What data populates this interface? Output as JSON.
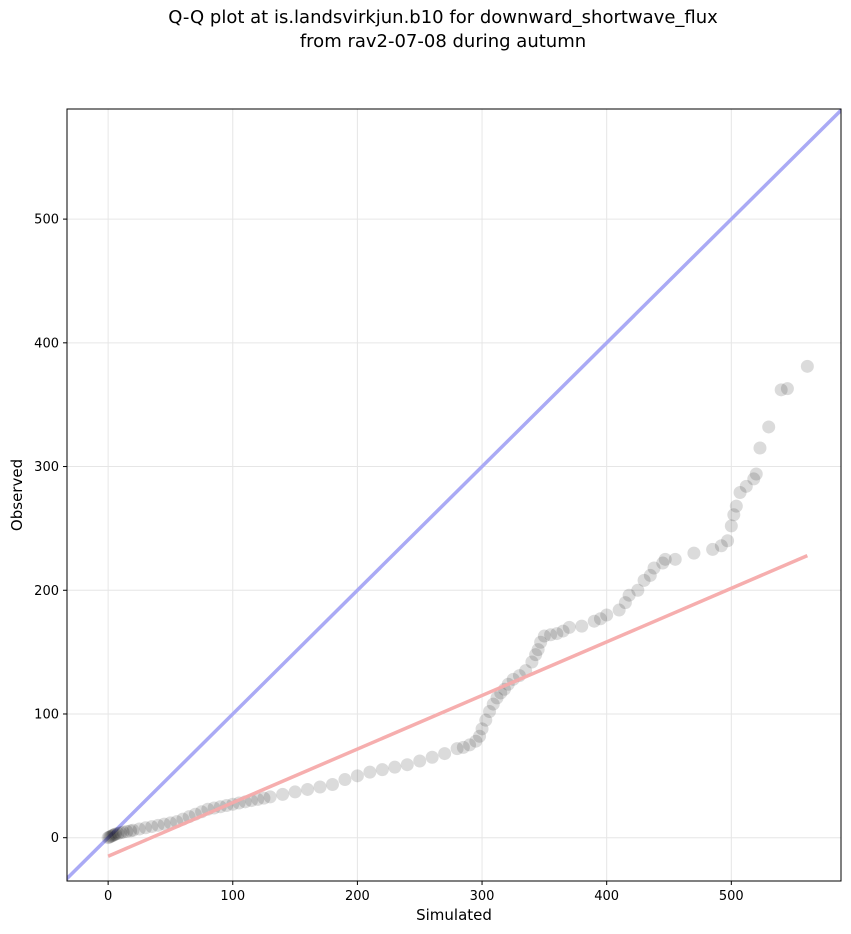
{
  "chart_data": {
    "type": "scatter",
    "title_lines": [
      "Q-Q plot at is.landsvirkjun.b10 for downward_shortwave_flux",
      "from rav2-07-08 during autumn"
    ],
    "xlabel": "Simulated",
    "ylabel": "Observed",
    "xlim": [
      -33,
      588
    ],
    "ylim": [
      -35,
      589
    ],
    "xticks": [
      0,
      100,
      200,
      300,
      400,
      500
    ],
    "yticks": [
      0,
      100,
      200,
      300,
      400,
      500
    ],
    "grid": true,
    "identity_line": {
      "color": "#aaaaf5"
    },
    "fit_line": {
      "x": [
        0,
        561
      ],
      "y": [
        -15,
        228
      ],
      "color": "#f5aaaa"
    },
    "point_color": "#000000",
    "point_alpha": 0.14,
    "quantiles": {
      "x": [
        0,
        1,
        2,
        3,
        4,
        5,
        6,
        8,
        10,
        12,
        15,
        18,
        20,
        25,
        30,
        35,
        40,
        45,
        50,
        55,
        60,
        65,
        70,
        75,
        80,
        85,
        90,
        95,
        100,
        105,
        110,
        115,
        120,
        125,
        130,
        140,
        150,
        160,
        170,
        180,
        190,
        200,
        210,
        220,
        230,
        240,
        250,
        260,
        270,
        280,
        285,
        290,
        295,
        298,
        300,
        303,
        306,
        309,
        312,
        315,
        318,
        321,
        325,
        330,
        335,
        340,
        343,
        345,
        347,
        350,
        355,
        360,
        365,
        370,
        380,
        390,
        395,
        400,
        410,
        415,
        418,
        425,
        430,
        435,
        438,
        445,
        447,
        455,
        470,
        485,
        492,
        497,
        500,
        502,
        504,
        507,
        512,
        518,
        520,
        523,
        530,
        540,
        545,
        561
      ],
      "y": [
        0,
        0.5,
        1,
        1.5,
        2,
        2.5,
        3,
        3.5,
        4,
        4.5,
        5,
        5.5,
        6,
        7,
        8,
        9,
        10,
        11,
        12,
        13,
        15,
        17,
        19,
        21,
        23,
        24,
        25,
        26,
        27,
        28,
        29,
        30,
        31,
        32,
        33,
        35,
        37,
        39,
        41,
        43,
        47,
        50,
        53,
        55,
        57,
        59,
        62,
        65,
        68,
        72,
        73,
        75,
        78,
        82,
        88,
        95,
        102,
        108,
        113,
        117,
        120,
        124,
        128,
        131,
        135,
        142,
        148,
        152,
        158,
        163,
        164,
        165,
        167,
        170,
        171,
        175,
        177,
        180,
        184,
        190,
        196,
        200,
        208,
        212,
        218,
        222,
        225,
        225,
        230,
        233,
        236,
        240,
        252,
        261,
        268,
        279,
        284,
        290,
        294,
        315,
        332,
        362,
        363,
        381
      ]
    }
  }
}
